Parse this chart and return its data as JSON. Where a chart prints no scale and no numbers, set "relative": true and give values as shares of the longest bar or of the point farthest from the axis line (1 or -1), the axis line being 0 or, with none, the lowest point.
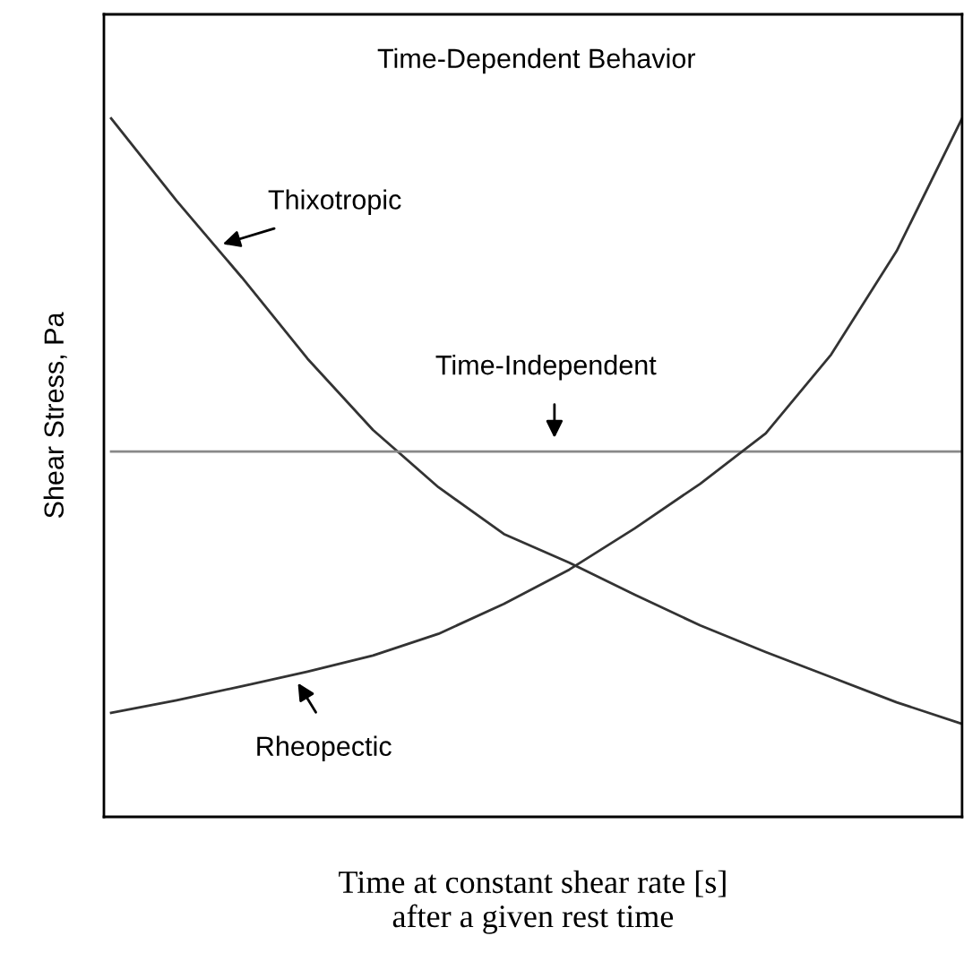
{
  "chart_data": {
    "type": "line",
    "title": "Time-Dependent Behavior",
    "xlabel": "Time at constant shear rate [s]\nafter a given rest time",
    "ylabel": "Shear Stress, Pa",
    "relative": true,
    "categories": [
      null,
      null,
      null,
      null,
      null,
      null,
      null,
      null,
      null,
      null,
      null,
      null,
      null,
      null
    ],
    "series": [
      {
        "name": "Thixotropic",
        "color": "#333333",
        "values": [
          1.0,
          0.882,
          0.772,
          0.656,
          0.554,
          0.472,
          0.405,
          0.364,
          0.318,
          0.274,
          0.236,
          0.2,
          0.164,
          0.133
        ]
      },
      {
        "name": "Time-Independent",
        "color": "#888888",
        "values": [
          0.523,
          0.523,
          0.523,
          0.523,
          0.523,
          0.523,
          0.523,
          0.523,
          0.523,
          0.523,
          0.523,
          0.523,
          0.523,
          0.523
        ]
      },
      {
        "name": "Rheopectic",
        "color": "#333333",
        "values": [
          0.149,
          0.167,
          0.187,
          0.208,
          0.231,
          0.262,
          0.305,
          0.354,
          0.413,
          0.477,
          0.549,
          0.662,
          0.81,
          1.0
        ]
      }
    ],
    "grid": false,
    "legend": false,
    "marker": "none",
    "line_style": "solid"
  }
}
